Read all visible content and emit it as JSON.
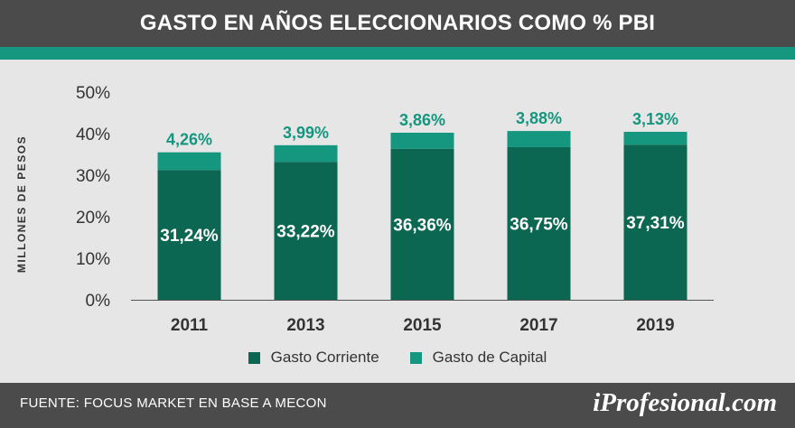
{
  "header": {
    "title": "GASTO EN AÑOS ELECCIONARIOS COMO % PBI"
  },
  "chart_data": {
    "type": "bar",
    "stacked": true,
    "ylabel": "MILLONES DE PESOS",
    "ylim": [
      0,
      50
    ],
    "yticks": [
      "0%",
      "10%",
      "20%",
      "30%",
      "40%",
      "50%"
    ],
    "yticks_values": [
      0,
      10,
      20,
      30,
      40,
      50
    ],
    "categories": [
      "2011",
      "2013",
      "2015",
      "2017",
      "2019"
    ],
    "series": [
      {
        "name": "Gasto Corriente",
        "color": "#0b6652",
        "values": [
          31.24,
          33.22,
          36.36,
          36.75,
          37.31
        ],
        "labels": [
          "31,24%",
          "33,22%",
          "36,36%",
          "36,75%",
          "37,31%"
        ]
      },
      {
        "name": "Gasto de Capital",
        "color": "#14967f",
        "values": [
          4.26,
          3.99,
          3.86,
          3.88,
          3.13
        ],
        "labels": [
          "4,26%",
          "3,99%",
          "3,86%",
          "3,88%",
          "3,13%"
        ]
      }
    ],
    "legend_position": "bottom",
    "grid": false
  },
  "footer": {
    "source": "FUENTE: FOCUS MARKET EN BASE A MECON",
    "logo": "iProfesional.com"
  }
}
